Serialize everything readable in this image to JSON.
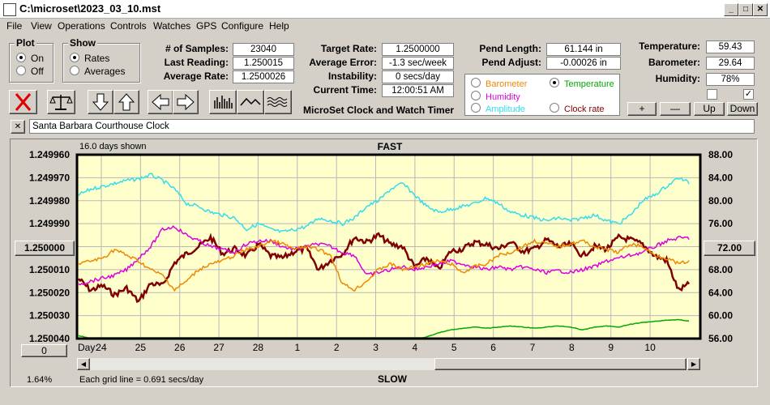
{
  "window": {
    "title": "C:\\microset\\2023_03_10.mst"
  },
  "menu": [
    "File",
    "View",
    "Operations",
    "Controls",
    "Watches",
    "GPS",
    "Configure",
    "Help"
  ],
  "plot_group": {
    "title": "Plot",
    "on": "On",
    "off": "Off",
    "selected": "On"
  },
  "show_group": {
    "title": "Show",
    "rates": "Rates",
    "averages": "Averages",
    "selected": "Rates"
  },
  "stats": {
    "samples_label": "# of Samples:",
    "samples": "23040",
    "last_label": "Last Reading:",
    "last": "1.250015",
    "avg_label": "Average Rate:",
    "avg": "1.2500026"
  },
  "target": {
    "rate_label": "Target Rate:",
    "rate": "1.2500000",
    "err_label": "Average Error:",
    "err": "-1.3 sec/week",
    "inst_label": "Instability:",
    "inst": "0 secs/day",
    "time_label": "Current Time:",
    "time": "12:00:51 AM"
  },
  "app_title": "MicroSet Clock and Watch Timer",
  "pend": {
    "len_label": "Pend Length:",
    "len": "61.144 in",
    "adj_label": "Pend Adjust:",
    "adj": "-0.00026 in"
  },
  "series_select": {
    "barometer": "Barometer",
    "temperature": "Temperature",
    "humidity": "Humidity",
    "amplitude": "Amplitude",
    "clock_rate": "Clock rate",
    "selected": "Temperature"
  },
  "env": {
    "temp_label": "Temperature:",
    "temp": "59.43",
    "baro_label": "Barometer:",
    "baro": "29.64",
    "hum_label": "Humidity:",
    "hum": "78%"
  },
  "scale_buttons": {
    "plus": "+",
    "minus": "—",
    "up": "Up",
    "down": "Down"
  },
  "checkboxes": [
    false,
    true
  ],
  "watch_name": "Santa Barbara Courthouse Clock",
  "close_symbol": "✕",
  "chart_left_button": "1.250000",
  "chart_right_button": "72.00",
  "bottom_left_button": "0",
  "percent": "1.64%",
  "grid_note": "Each grid line = 0.691 secs/day",
  "days_shown": "16.0 days shown",
  "fast_label": "FAST",
  "slow_label": "SLOW",
  "day_label": "Day:",
  "colors": {
    "plot_bg": "#ffffcc",
    "clock_rate": "#800000",
    "temperature": "#33ddee",
    "humidity": "#dd00dd",
    "barometer": "#ee8800",
    "amplitude": "#00aa00"
  },
  "chart_data": {
    "type": "line",
    "title": "FAST",
    "xlabel": "Day:",
    "x_ticks": [
      "24",
      "25",
      "26",
      "27",
      "28",
      "1",
      "2",
      "3",
      "4",
      "5",
      "6",
      "7",
      "8",
      "9",
      "10"
    ],
    "y_left_ticks": [
      "1.249960",
      "1.249970",
      "1.249980",
      "1.249990",
      "1.250000",
      "1.250010",
      "1.250020",
      "1.250030",
      "1.250040"
    ],
    "y_left_range": [
      1.25004,
      1.24996
    ],
    "y_right_ticks": [
      "88.00",
      "84.00",
      "80.00",
      "76.00",
      "72.00",
      "68.00",
      "64.00",
      "60.00",
      "56.00"
    ],
    "y_right_range": [
      56,
      88
    ],
    "grid": true,
    "series": [
      {
        "name": "Clock rate",
        "axis": "left",
        "color": "#800000",
        "values": [
          1.250014,
          1.250019,
          1.250017,
          1.250021,
          1.250018,
          1.250024,
          1.250016,
          1.250017,
          1.250007,
          1.250003,
          1.25,
          1.249996,
          1.250003,
          1.250001,
          1.250004,
          1.249999,
          1.250004,
          1.250005,
          1.250002,
          1.250001,
          1.25001,
          1.250006,
          1.250003,
          1.249996,
          1.249998,
          1.249995,
          1.249999,
          1.25,
          1.250009,
          1.250005,
          1.25001,
          1.250002,
          1.250001,
          1.249998,
          1.249999,
          1.250001,
          1.249998,
          1.250002,
          1.250001,
          1.249997,
          1.25,
          1.249999,
          1.250004,
          1.25,
          1.250001,
          1.249996,
          1.249997,
          1.249999,
          1.250004,
          1.250006,
          1.250019,
          1.250016
        ]
      },
      {
        "name": "Temperature",
        "axis": "right",
        "color": "#33ddee",
        "values": [
          81.0,
          82.0,
          82.5,
          83.0,
          83.5,
          83.8,
          84.5,
          83.5,
          82.0,
          79.5,
          79.0,
          78.0,
          77.5,
          77.0,
          75.0,
          76.0,
          75.0,
          74.5,
          75.0,
          75.5,
          77.0,
          76.5,
          76.0,
          77.0,
          79.0,
          80.0,
          82.0,
          83.0,
          81.0,
          79.0,
          78.0,
          78.5,
          79.0,
          79.5,
          80.5,
          79.5,
          78.0,
          77.5,
          77.0,
          76.5,
          77.0,
          76.5,
          77.0,
          77.5,
          76.5,
          76.0,
          77.5,
          80.0,
          81.0,
          82.5,
          84.0,
          83.0
        ]
      },
      {
        "name": "Humidity",
        "axis": "right",
        "color": "#dd00dd",
        "values": [
          65.5,
          66.0,
          66.5,
          67.0,
          68.0,
          70.0,
          72.0,
          75.0,
          75.5,
          74.0,
          73.0,
          72.0,
          71.5,
          71.0,
          72.5,
          73.0,
          73.0,
          72.0,
          71.5,
          72.0,
          72.5,
          72.0,
          71.0,
          70.5,
          67.0,
          67.5,
          68.0,
          68.5,
          68.0,
          68.5,
          69.0,
          69.5,
          69.0,
          68.5,
          68.0,
          68.5,
          68.0,
          68.5,
          68.0,
          67.5,
          67.8,
          67.5,
          68.0,
          68.5,
          69.5,
          70.0,
          70.5,
          71.0,
          72.0,
          73.0,
          73.5,
          73.5
        ]
      },
      {
        "name": "Barometer",
        "axis": "right",
        "color": "#ee8800",
        "values": [
          69.0,
          69.5,
          70.0,
          71.5,
          70.5,
          69.5,
          68.0,
          67.0,
          64.5,
          66.0,
          68.0,
          69.0,
          69.5,
          70.5,
          71.5,
          72.0,
          73.0,
          72.5,
          71.5,
          72.0,
          71.5,
          70.5,
          65.5,
          64.5,
          66.0,
          68.0,
          69.0,
          68.0,
          68.5,
          69.0,
          69.5,
          69.0,
          67.5,
          68.5,
          69.0,
          70.5,
          71.0,
          72.0,
          73.0,
          72.5,
          72.0,
          72.5,
          73.0,
          72.0,
          71.5,
          71.0,
          72.5,
          72.0,
          70.5,
          70.0,
          69.0,
          69.5
        ]
      },
      {
        "name": "Amplitude",
        "axis": "right",
        "color": "#00aa00",
        "values": [
          56.5,
          56.0,
          55.8,
          55.8,
          55.8,
          55.8,
          55.8,
          55.8,
          55.8,
          55.8,
          55.8,
          55.8,
          55.8,
          55.8,
          55.8,
          55.8,
          55.8,
          55.8,
          55.8,
          55.8,
          55.8,
          55.8,
          55.8,
          55.8,
          55.8,
          55.8,
          55.8,
          55.8,
          55.8,
          56.3,
          57.0,
          57.5,
          57.8,
          58.0,
          57.8,
          58.0,
          58.2,
          58.0,
          57.8,
          58.0,
          58.2,
          58.0,
          57.5,
          58.0,
          58.2,
          58.0,
          58.5,
          58.8,
          59.0,
          59.2,
          59.3,
          59.0
        ]
      }
    ]
  }
}
